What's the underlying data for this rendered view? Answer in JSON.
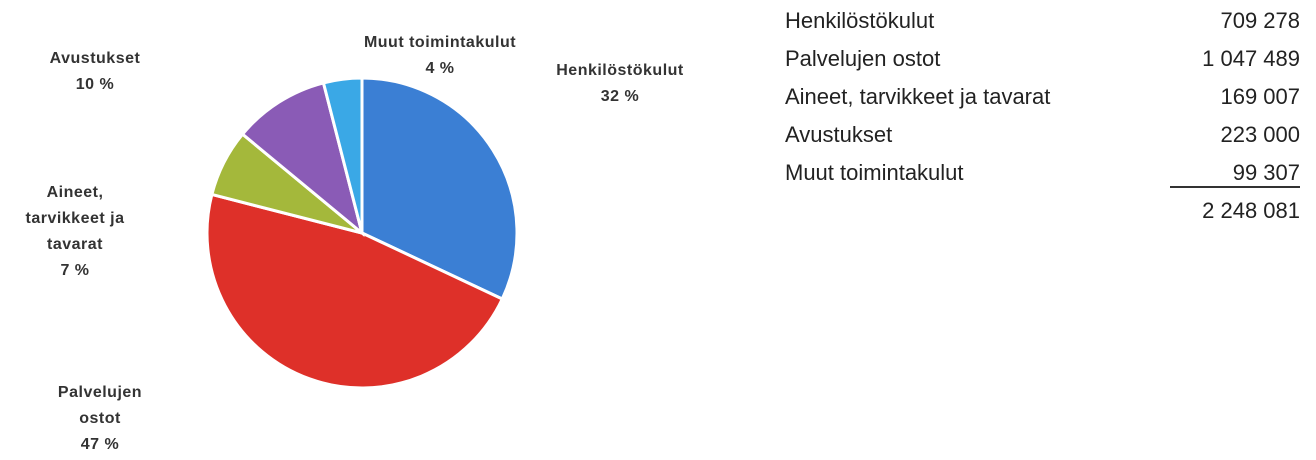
{
  "chart_data": {
    "type": "pie",
    "categories": [
      "Henkilöstökulut",
      "Palvelujen ostot",
      "Aineet, tarvikkeet ja tavarat",
      "Avustukset",
      "Muut toimintakulut"
    ],
    "values": [
      32,
      47,
      7,
      10,
      4
    ],
    "value_labels": [
      "32 %",
      "47 %",
      "7 %",
      "10 %",
      "4 %"
    ],
    "colors": [
      "#3b7fd4",
      "#de3029",
      "#a4b83b",
      "#8a5bb6",
      "#3aa8e6"
    ]
  },
  "table": {
    "rows": [
      [
        "Henkilöstökulut",
        "709 278"
      ],
      [
        "Palvelujen ostot",
        "1 047 489"
      ],
      [
        "Aineet, tarvikkeet ja tavarat",
        "169 007"
      ],
      [
        "Avustukset",
        "223 000"
      ],
      [
        "Muut toimintakulut",
        "99 307"
      ]
    ],
    "total": "2 248 081"
  }
}
